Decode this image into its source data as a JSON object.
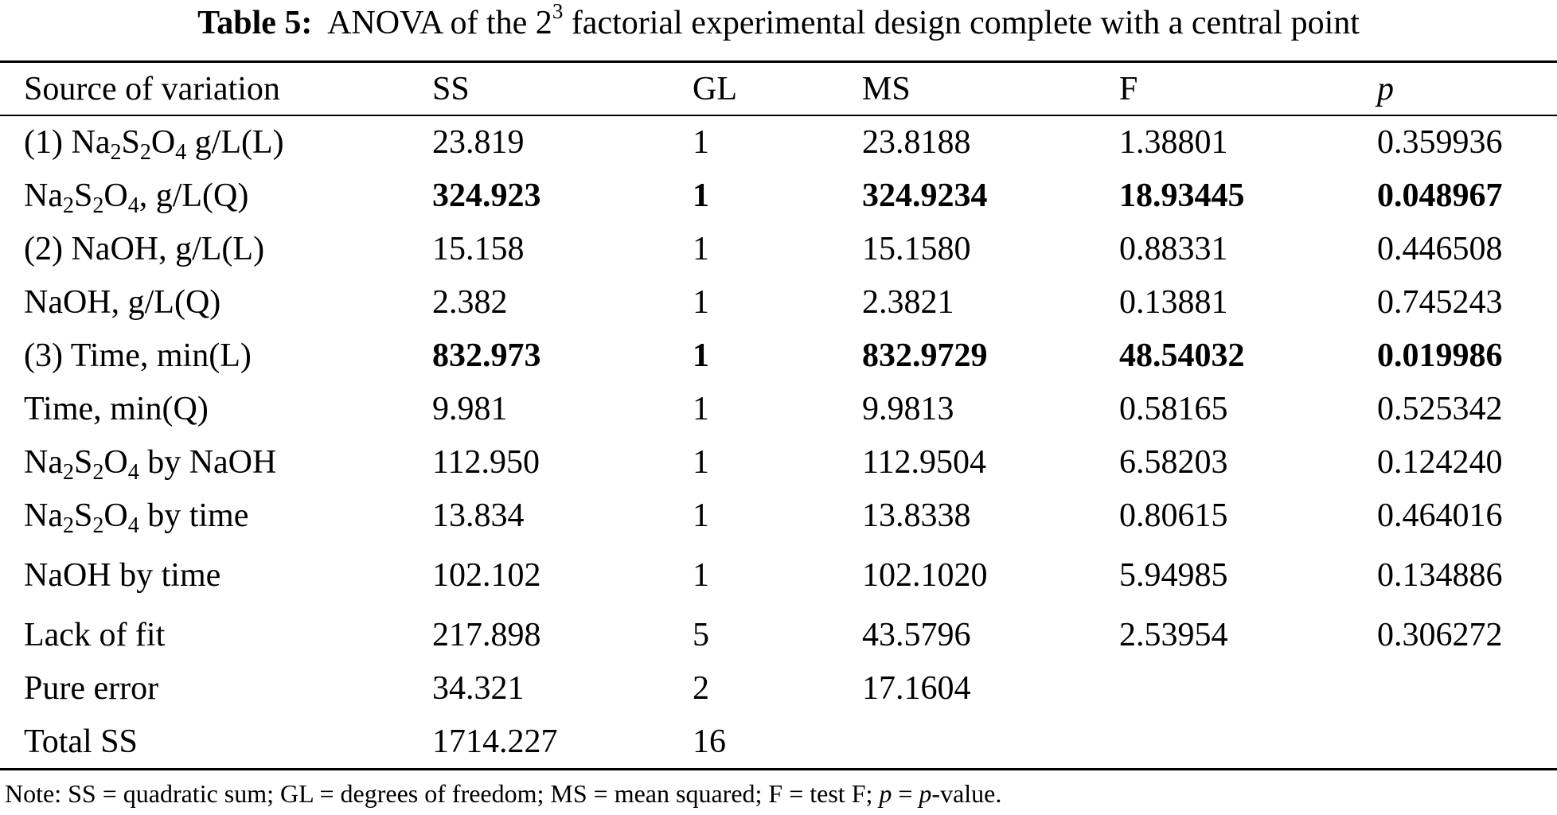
{
  "caption": {
    "label": "Table 5:",
    "text_before_sup": "ANOVA of the 2",
    "superscript": "3",
    "text_after_sup": " factorial experimental design complete with a central point"
  },
  "headers": [
    "Source of variation",
    "SS",
    "GL",
    "MS",
    "F",
    "p"
  ],
  "rows": [
    {
      "source": {
        "prefix": "(1) ",
        "chem": true,
        "suffix": " g/L(L)"
      },
      "ss": "23.819",
      "gl": "1",
      "ms": "23.8188",
      "f": "1.38801",
      "p": "0.359936",
      "bold": false
    },
    {
      "source": {
        "prefix": "",
        "chem": true,
        "suffix": ", g/L(Q)"
      },
      "ss": "324.923",
      "gl": "1",
      "ms": "324.9234",
      "f": "18.93445",
      "p": "0.048967",
      "bold": true
    },
    {
      "source": {
        "prefix": "(2) NaOH, g/L(L)",
        "chem": false,
        "suffix": ""
      },
      "ss": "15.158",
      "gl": "1",
      "ms": "15.1580",
      "f": "0.88331",
      "p": "0.446508",
      "bold": false
    },
    {
      "source": {
        "prefix": "NaOH, g/L(Q)",
        "chem": false,
        "suffix": ""
      },
      "ss": "2.382",
      "gl": "1",
      "ms": "2.3821",
      "f": "0.13881",
      "p": "0.745243",
      "bold": false
    },
    {
      "source": {
        "prefix": "(3) Time, min(L)",
        "chem": false,
        "suffix": ""
      },
      "ss": "832.973",
      "gl": "1",
      "ms": "832.9729",
      "f": "48.54032",
      "p": "0.019986",
      "bold": true
    },
    {
      "source": {
        "prefix": "Time, min(Q)",
        "chem": false,
        "suffix": ""
      },
      "ss": "9.981",
      "gl": "1",
      "ms": "9.9813",
      "f": "0.58165",
      "p": "0.525342",
      "bold": false
    },
    {
      "source": {
        "prefix": "",
        "chem": true,
        "suffix": " by NaOH"
      },
      "ss": "112.950",
      "gl": "1",
      "ms": "112.9504",
      "f": "6.58203",
      "p": "0.124240",
      "bold": false
    },
    {
      "source": {
        "prefix": "",
        "chem": true,
        "suffix": " by time"
      },
      "ss": "13.834",
      "gl": "1",
      "ms": "13.8338",
      "f": "0.80615",
      "p": "0.464016",
      "bold": false
    },
    {
      "source": {
        "prefix": "NaOH by time",
        "chem": false,
        "suffix": ""
      },
      "ss": "102.102",
      "gl": "1",
      "ms": "102.1020",
      "f": "5.94985",
      "p": "0.134886",
      "bold": false,
      "spacer": true
    },
    {
      "source": {
        "prefix": "Lack of fit",
        "chem": false,
        "suffix": ""
      },
      "ss": "217.898",
      "gl": "5",
      "ms": "43.5796",
      "f": "2.53954",
      "p": "0.306272",
      "bold": false
    },
    {
      "source": {
        "prefix": "Pure error",
        "chem": false,
        "suffix": ""
      },
      "ss": "34.321",
      "gl": "2",
      "ms": "17.1604",
      "f": "",
      "p": "",
      "bold": false
    },
    {
      "source": {
        "prefix": "Total SS",
        "chem": false,
        "suffix": ""
      },
      "ss": "1714.227",
      "gl": "16",
      "ms": "",
      "f": "",
      "p": "",
      "bold": false
    }
  ],
  "chem": {
    "parts": [
      "Na",
      "2",
      "S",
      "2",
      "O",
      "4"
    ]
  },
  "note": {
    "text1": "Note: SS = quadratic sum; GL = degrees of freedom; MS = mean squared; F = test F; ",
    "p1": "p",
    "text2": " = ",
    "p2": "p",
    "text3": "-value."
  }
}
